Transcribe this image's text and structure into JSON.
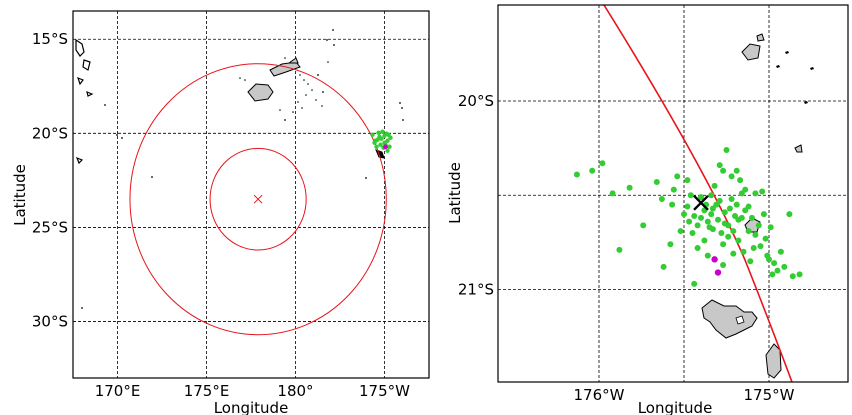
{
  "left_map": {
    "xlabel": "Longitude",
    "ylabel": "Latitude",
    "x_ticks": [
      "170°E",
      "175°E",
      "180°",
      "175°W"
    ],
    "y_ticks": [
      "15°S",
      "20°S",
      "25°S",
      "30°S"
    ]
  },
  "right_map": {
    "xlabel": "Longitude",
    "ylabel": "Latitude",
    "x_ticks": [
      "176°W",
      "175°W"
    ],
    "y_ticks": [
      "20°S",
      "21°S"
    ]
  },
  "colors": {
    "circle": "#e8141c",
    "cross_left": "#e8141c",
    "green_points": "#33cc33",
    "magenta_points": "#cc00cc",
    "land_fill": "#c8c8c8"
  },
  "chart_data": [
    {
      "type": "scatter",
      "map": "left",
      "lon_range_east": [
        167.5,
        187.5
      ],
      "lat_range": [
        -33,
        -13.5
      ],
      "epicenter": {
        "lon_east": 177.9,
        "lat": -23.5
      },
      "circles_radius_deg": [
        2.7,
        7.2
      ],
      "cluster_center": {
        "lon_east": 185.0,
        "lat": -20.5
      }
    },
    {
      "type": "scatter",
      "map": "right",
      "lon_range_west": [
        -176.5,
        -174.5
      ],
      "lat_range": [
        -21.5,
        -19.5
      ],
      "cross": {
        "lon": -175.4,
        "lat": -20.54
      },
      "magenta_points": [
        {
          "lon": -175.32,
          "lat": -20.84
        },
        {
          "lon": -175.3,
          "lat": -20.91
        }
      ],
      "green_points": [
        [
          -176.13,
          -20.39
        ],
        [
          -176.04,
          -20.37
        ],
        [
          -175.98,
          -20.33
        ],
        [
          -175.92,
          -20.49
        ],
        [
          -175.82,
          -20.46
        ],
        [
          -175.66,
          -20.43
        ],
        [
          -175.63,
          -20.52
        ],
        [
          -175.57,
          -20.55
        ],
        [
          -175.54,
          -20.4
        ],
        [
          -175.5,
          -20.6
        ],
        [
          -175.48,
          -20.56
        ],
        [
          -175.46,
          -20.5
        ],
        [
          -175.44,
          -20.61
        ],
        [
          -175.42,
          -20.66
        ],
        [
          -175.4,
          -20.62
        ],
        [
          -175.38,
          -20.58
        ],
        [
          -175.36,
          -20.64
        ],
        [
          -175.34,
          -20.6
        ],
        [
          -175.33,
          -20.68
        ],
        [
          -175.31,
          -20.55
        ],
        [
          -175.3,
          -20.63
        ],
        [
          -175.28,
          -20.7
        ],
        [
          -175.26,
          -20.59
        ],
        [
          -175.24,
          -20.66
        ],
        [
          -175.22,
          -20.52
        ],
        [
          -175.2,
          -20.61
        ],
        [
          -175.18,
          -20.74
        ],
        [
          -175.16,
          -20.49
        ],
        [
          -175.14,
          -20.58
        ],
        [
          -175.12,
          -20.69
        ],
        [
          -175.1,
          -20.62
        ],
        [
          -175.08,
          -20.49
        ],
        [
          -175.05,
          -20.77
        ],
        [
          -175.03,
          -20.6
        ],
        [
          -175.01,
          -20.82
        ],
        [
          -174.99,
          -20.67
        ],
        [
          -174.97,
          -20.86
        ],
        [
          -174.95,
          -20.9
        ],
        [
          -174.93,
          -20.8
        ],
        [
          -174.91,
          -20.88
        ],
        [
          -174.88,
          -20.6
        ],
        [
          -174.86,
          -20.93
        ],
        [
          -174.82,
          -20.92
        ],
        [
          -175.45,
          -20.7
        ],
        [
          -175.42,
          -20.78
        ],
        [
          -175.38,
          -20.74
        ],
        [
          -175.36,
          -20.82
        ],
        [
          -175.34,
          -20.5
        ],
        [
          -175.32,
          -20.45
        ],
        [
          -175.29,
          -20.34
        ],
        [
          -175.27,
          -20.37
        ],
        [
          -175.25,
          -20.26
        ],
        [
          -175.22,
          -20.4
        ],
        [
          -175.19,
          -20.37
        ],
        [
          -175.17,
          -20.42
        ],
        [
          -175.14,
          -20.47
        ],
        [
          -175.12,
          -20.56
        ],
        [
          -175.08,
          -20.71
        ],
        [
          -175.06,
          -20.66
        ],
        [
          -175.04,
          -20.48
        ],
        [
          -175.4,
          -20.51
        ],
        [
          -175.37,
          -20.55
        ],
        [
          -175.35,
          -20.67
        ],
        [
          -175.27,
          -20.76
        ],
        [
          -175.24,
          -20.72
        ],
        [
          -175.21,
          -20.81
        ],
        [
          -175.18,
          -20.63
        ],
        [
          -175.15,
          -20.8
        ],
        [
          -175.11,
          -20.85
        ],
        [
          -175.09,
          -20.78
        ],
        [
          -175.02,
          -20.73
        ],
        [
          -175.0,
          -20.84
        ],
        [
          -174.98,
          -20.92
        ],
        [
          -175.47,
          -20.64
        ],
        [
          -175.52,
          -20.69
        ],
        [
          -175.58,
          -20.76
        ],
        [
          -175.62,
          -20.88
        ],
        [
          -175.74,
          -20.66
        ],
        [
          -175.88,
          -20.79
        ],
        [
          -175.44,
          -20.97
        ],
        [
          -175.27,
          -20.87
        ],
        [
          -175.48,
          -20.42
        ],
        [
          -175.56,
          -20.47
        ],
        [
          -175.33,
          -20.57
        ],
        [
          -175.29,
          -20.53
        ],
        [
          -175.26,
          -20.65
        ],
        [
          -175.23,
          -20.57
        ],
        [
          -175.21,
          -20.69
        ],
        [
          -175.19,
          -20.55
        ],
        [
          -175.16,
          -20.62
        ]
      ]
    }
  ]
}
